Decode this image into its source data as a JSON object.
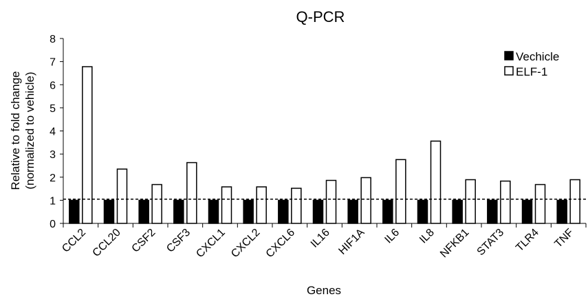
{
  "chart_data": {
    "type": "bar",
    "title": "Q-PCR",
    "xlabel": "Genes",
    "ylabel": [
      "Relative to fold change",
      "(normalized to vehicle)"
    ],
    "ylim": [
      0,
      8
    ],
    "yticks": [
      0,
      1,
      2,
      3,
      4,
      5,
      6,
      7,
      8
    ],
    "grid": false,
    "legend_position": "top-right",
    "reference_line": {
      "y": 1.05,
      "style": "dashed"
    },
    "categories": [
      "CCL2",
      "CCL20",
      "CSF2",
      "CSF3",
      "CXCL1",
      "CXCL2",
      "CXCL6",
      "IL16",
      "HIF1A",
      "IL6",
      "IL8",
      "NFKB1",
      "STAT3",
      "TLR4",
      "TNF"
    ],
    "series": [
      {
        "name": "Vechicle",
        "color": "#000000",
        "fill": "solid",
        "values": [
          1,
          1,
          1,
          1,
          1,
          1,
          1,
          1,
          1,
          1,
          1,
          1,
          1,
          1,
          1
        ]
      },
      {
        "name": "ELF-1",
        "color": "#ffffff",
        "fill": "hollow",
        "values": [
          6.78,
          2.35,
          1.68,
          2.63,
          1.58,
          1.58,
          1.52,
          1.86,
          1.98,
          2.76,
          3.56,
          1.89,
          1.83,
          1.68,
          1.89
        ]
      }
    ]
  }
}
